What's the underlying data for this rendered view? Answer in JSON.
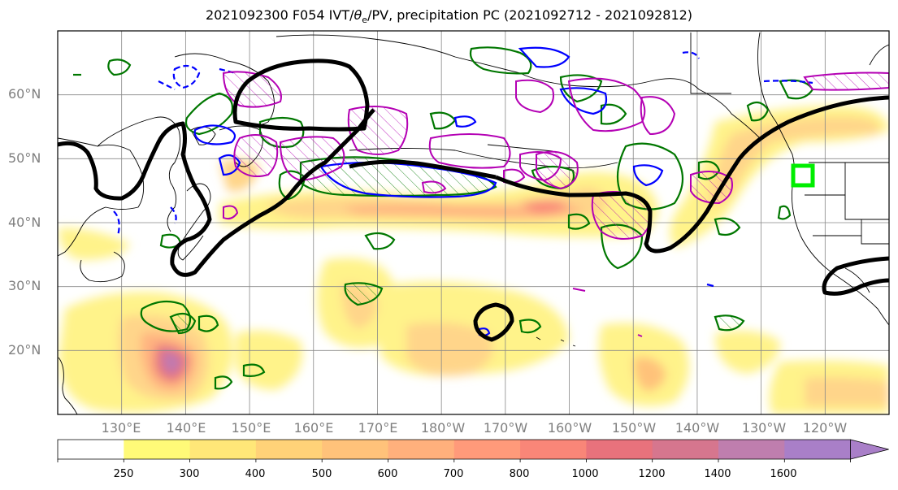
{
  "title": {
    "prefix": "2021092300 F054 IVT/",
    "theta": "θ",
    "theta_sub": "e",
    "suffix": "/PV, precipitation PC (2021092712 - 2021092812)"
  },
  "map": {
    "lat_labels": [
      "60°N",
      "50°N",
      "40°N",
      "30°N",
      "20°N"
    ],
    "lon_labels": [
      "130°E",
      "140°E",
      "150°E",
      "160°E",
      "170°E",
      "180°W",
      "170°W",
      "160°W",
      "150°W",
      "140°W",
      "130°W",
      "120°W"
    ],
    "extent": {
      "lon": [
        120,
        250
      ],
      "lat": [
        10,
        70
      ]
    },
    "grid": true
  },
  "colorbar": {
    "bounds": [
      0,
      250,
      300,
      400,
      500,
      600,
      700,
      800,
      1000,
      1200,
      1400,
      1600
    ],
    "labels": [
      "250",
      "300",
      "400",
      "500",
      "600",
      "700",
      "800",
      "1000",
      "1200",
      "1400",
      "1600"
    ],
    "colors": [
      "#ffffff",
      "#fffa78",
      "#ffe778",
      "#ffd278",
      "#ffc27a",
      "#ffb07c",
      "#ff9a7a",
      "#f98678",
      "#e8727c",
      "#d6768e",
      "#bf7eae",
      "#a97fc8"
    ],
    "extend": "max"
  },
  "colors": {
    "pv_dashed": "#0000ff",
    "pv_solid": "#0000ff",
    "theta_e": "#007700",
    "precip_pc": "#b400b4",
    "contour_black": "#000000",
    "target_box": "#00ee00"
  }
}
